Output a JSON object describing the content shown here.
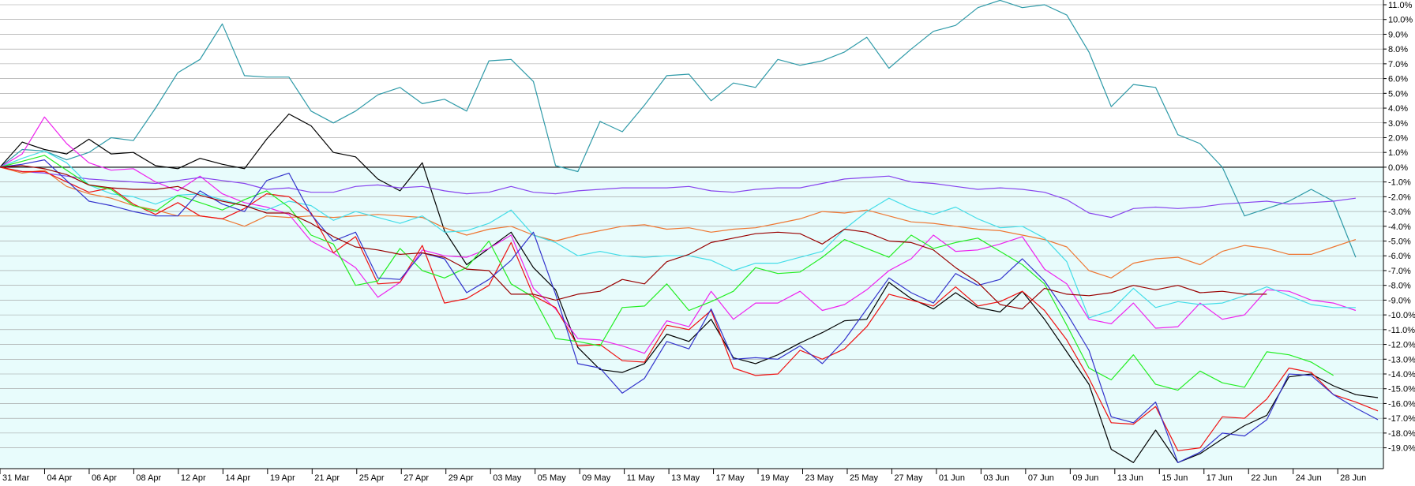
{
  "chart_data": {
    "type": "line",
    "title": "",
    "xlabel": "",
    "ylabel": "",
    "y_axis_side": "right",
    "y_unit": "%",
    "ylim": [
      -20,
      11.5
    ],
    "grid": true,
    "legend": "none",
    "colors": {
      "above_zero_bg": "#ffffff",
      "below_zero_bg": "#e8fcfc",
      "grid": "#9a9a9a",
      "zero_line": "#000000"
    },
    "y_ticks": [
      "11.0%",
      "10.0%",
      "9.0%",
      "8.0%",
      "7.0%",
      "6.0%",
      "5.0%",
      "4.0%",
      "3.0%",
      "2.0%",
      "1.0%",
      "0.0%",
      "-1.0%",
      "-2.0%",
      "-3.0%",
      "-4.0%",
      "-5.0%",
      "-6.0%",
      "-7.0%",
      "-8.0%",
      "-9.0%",
      "-10.0%",
      "-11.0%",
      "-12.0%",
      "-13.0%",
      "-14.0%",
      "-15.0%",
      "-16.0%",
      "-17.0%",
      "-18.0%",
      "-19.0%"
    ],
    "x_ticks": [
      "31 Mar",
      "04 Apr",
      "06 Apr",
      "08 Apr",
      "12 Apr",
      "14 Apr",
      "19 Apr",
      "21 Apr",
      "25 Apr",
      "27 Apr",
      "29 Apr",
      "03 May",
      "05 May",
      "09 May",
      "11 May",
      "13 May",
      "17 May",
      "19 May",
      "23 May",
      "25 May",
      "27 May",
      "01 Jun",
      "03 Jun",
      "07 Jun",
      "09 Jun",
      "13 Jun",
      "15 Jun",
      "17 Jun",
      "22 Jun",
      "24 Jun",
      "28 Jun"
    ],
    "x_points": 63,
    "series": [
      {
        "color": "#2e9aa8",
        "values": [
          0,
          1.2,
          1.1,
          0.5,
          1.0,
          2.0,
          1.8,
          4.0,
          6.4,
          7.3,
          9.7,
          6.2,
          6.1,
          6.1,
          3.8,
          3.0,
          3.8,
          4.9,
          5.4,
          4.3,
          4.6,
          3.8,
          7.2,
          7.3,
          5.8,
          0.1,
          -0.3,
          3.1,
          2.4,
          4.2,
          6.2,
          6.3,
          4.5,
          5.7,
          5.4,
          7.3,
          6.9,
          7.2,
          7.8,
          8.8,
          6.7,
          8.0,
          9.2,
          9.6,
          10.8,
          11.3,
          10.8,
          11.0,
          10.3,
          7.8,
          4.1,
          5.6,
          5.4,
          2.2,
          1.6,
          0.0,
          -3.3,
          -2.8,
          -2.3,
          -1.5,
          -2.3,
          -6.1
        ]
      },
      {
        "color": "#000000",
        "values": [
          0,
          1.7,
          1.2,
          0.9,
          1.9,
          0.9,
          1.0,
          0.1,
          -0.1,
          0.6,
          0.2,
          -0.1,
          1.9,
          3.6,
          2.8,
          1.0,
          0.7,
          -0.8,
          -1.6,
          0.3,
          -4.3,
          -6.6,
          -5.5,
          -4.4,
          -6.8,
          -8.3,
          -12.2,
          -13.7,
          -13.9,
          -13.3,
          -11.3,
          -11.8,
          -10.3,
          -12.9,
          -13.3,
          -12.7,
          -11.9,
          -11.2,
          -10.4,
          -10.3,
          -7.8,
          -8.9,
          -9.6,
          -8.5,
          -9.5,
          -9.8,
          -8.4,
          -10.3,
          -12.5,
          -14.7,
          -19.1,
          -20.0,
          -17.8,
          -20.0,
          -19.4,
          -18.4,
          -17.5,
          -16.8,
          -14.2,
          -14.0,
          -14.8,
          -15.4,
          -15.6
        ]
      },
      {
        "color": "#ee22ee",
        "values": [
          0,
          0.9,
          3.4,
          1.6,
          0.3,
          -0.2,
          -0.1,
          -1.0,
          -1.6,
          -0.6,
          -1.8,
          -2.4,
          -2.7,
          -3.2,
          -5.0,
          -5.8,
          -6.8,
          -8.8,
          -7.8,
          -5.6,
          -6.0,
          -6.1,
          -5.5,
          -4.6,
          -8.2,
          -9.6,
          -11.6,
          -11.7,
          -12.1,
          -12.6,
          -10.4,
          -10.8,
          -8.4,
          -10.3,
          -9.2,
          -9.2,
          -8.4,
          -9.7,
          -9.3,
          -8.3,
          -7.0,
          -6.2,
          -4.6,
          -5.7,
          -5.6,
          -5.2,
          -4.7,
          -6.9,
          -7.9,
          -10.3,
          -10.6,
          -9.2,
          -10.9,
          -10.8,
          -9.2,
          -10.3,
          -10.0,
          -8.3,
          -8.4,
          -9.0,
          -9.2,
          -9.7
        ]
      },
      {
        "color": "#8844ee",
        "values": [
          0,
          -0.3,
          -0.4,
          -0.6,
          -0.8,
          -0.9,
          -1.0,
          -1.1,
          -0.9,
          -0.7,
          -0.9,
          -1.1,
          -1.5,
          -1.4,
          -1.7,
          -1.7,
          -1.3,
          -1.2,
          -1.4,
          -1.3,
          -1.6,
          -1.8,
          -1.7,
          -1.3,
          -1.7,
          -1.8,
          -1.6,
          -1.5,
          -1.4,
          -1.4,
          -1.4,
          -1.3,
          -1.6,
          -1.7,
          -1.5,
          -1.4,
          -1.4,
          -1.1,
          -0.8,
          -0.7,
          -0.6,
          -1.0,
          -1.1,
          -1.3,
          -1.5,
          -1.4,
          -1.5,
          -1.7,
          -2.2,
          -3.1,
          -3.4,
          -2.8,
          -2.7,
          -2.8,
          -2.7,
          -2.5,
          -2.4,
          -2.3,
          -2.5,
          -2.4,
          -2.3,
          -2.1
        ]
      },
      {
        "color": "#ee7733",
        "values": [
          0,
          -0.4,
          -0.2,
          -1.3,
          -1.8,
          -2.1,
          -2.6,
          -2.9,
          -3.3,
          -3.3,
          -3.5,
          -4.0,
          -3.3,
          -3.4,
          -3.3,
          -3.4,
          -3.3,
          -3.2,
          -3.3,
          -3.4,
          -4.1,
          -4.6,
          -4.2,
          -4.0,
          -4.6,
          -5.0,
          -4.6,
          -4.3,
          -4.0,
          -3.9,
          -4.2,
          -4.1,
          -4.4,
          -4.2,
          -4.1,
          -3.8,
          -3.5,
          -3.0,
          -3.1,
          -2.9,
          -3.3,
          -3.7,
          -3.8,
          -4.0,
          -4.2,
          -4.3,
          -4.6,
          -4.9,
          -5.4,
          -7.0,
          -7.5,
          -6.5,
          -6.2,
          -6.1,
          -6.6,
          -5.7,
          -5.3,
          -5.5,
          -5.9,
          -5.9,
          -5.4,
          -4.9
        ]
      },
      {
        "color": "#44dde8",
        "values": [
          0,
          0.6,
          1.1,
          0.3,
          -1.2,
          -1.8,
          -2.0,
          -2.5,
          -1.9,
          -1.8,
          -2.2,
          -2.6,
          -2.9,
          -2.3,
          -2.6,
          -3.6,
          -3.0,
          -3.4,
          -3.8,
          -3.3,
          -4.4,
          -4.3,
          -3.8,
          -2.9,
          -4.6,
          -5.1,
          -6.0,
          -5.7,
          -6.0,
          -6.1,
          -6.0,
          -6.0,
          -6.3,
          -7.0,
          -6.5,
          -6.5,
          -6.1,
          -5.7,
          -4.2,
          -3.0,
          -2.1,
          -2.8,
          -3.2,
          -2.7,
          -3.5,
          -4.1,
          -4.0,
          -4.8,
          -6.4,
          -10.2,
          -9.7,
          -8.2,
          -9.5,
          -9.1,
          -9.3,
          -9.2,
          -8.7,
          -8.1,
          -8.7,
          -9.3,
          -9.5,
          -9.5
        ]
      },
      {
        "color": "#ee1111",
        "values": [
          0,
          -0.3,
          -0.3,
          -1.0,
          -1.7,
          -1.4,
          -2.5,
          -3.2,
          -2.4,
          -3.3,
          -3.5,
          -2.8,
          -1.8,
          -2.0,
          -3.1,
          -5.8,
          -4.7,
          -7.9,
          -7.8,
          -5.3,
          -9.2,
          -8.9,
          -8.0,
          -5.1,
          -8.7,
          -9.5,
          -12.1,
          -12.0,
          -13.1,
          -13.2,
          -10.7,
          -11.0,
          -9.7,
          -13.6,
          -14.1,
          -14.0,
          -12.4,
          -13.0,
          -12.3,
          -10.8,
          -8.6,
          -9.0,
          -9.4,
          -8.1,
          -9.4,
          -9.1,
          -8.4,
          -9.7,
          -11.7,
          -14.3,
          -17.3,
          -17.4,
          -16.2,
          -19.2,
          -19.0,
          -16.9,
          -17.0,
          -15.7,
          -13.6,
          -13.9,
          -15.4,
          -15.9,
          -16.5
        ]
      },
      {
        "color": "#22ee22",
        "values": [
          0,
          0.4,
          0.8,
          -0.2,
          -1.2,
          -1.5,
          -2.6,
          -3.0,
          -1.9,
          -2.4,
          -2.9,
          -2.2,
          -1.6,
          -2.7,
          -4.6,
          -5.2,
          -8.0,
          -7.7,
          -5.5,
          -7.0,
          -7.5,
          -6.8,
          -5.0,
          -7.9,
          -8.8,
          -11.6,
          -11.8,
          -12.1,
          -9.5,
          -9.4,
          -7.9,
          -9.7,
          -9.1,
          -8.4,
          -6.8,
          -7.2,
          -7.1,
          -6.1,
          -4.9,
          -5.5,
          -6.1,
          -4.6,
          -5.5,
          -5.1,
          -4.8,
          -5.7,
          -6.6,
          -7.9,
          -10.7,
          -13.6,
          -14.4,
          -12.7,
          -14.7,
          -15.1,
          -13.8,
          -14.6,
          -14.9,
          -12.5,
          -12.7,
          -13.2,
          -14.1
        ]
      },
      {
        "color": "#3333cc",
        "values": [
          0,
          0.2,
          0.5,
          -0.9,
          -2.3,
          -2.6,
          -3.0,
          -3.3,
          -3.3,
          -1.6,
          -2.5,
          -3.0,
          -0.9,
          -0.4,
          -3.2,
          -5.0,
          -4.4,
          -7.5,
          -7.6,
          -5.8,
          -6.2,
          -8.5,
          -7.6,
          -6.3,
          -4.4,
          -8.6,
          -13.3,
          -13.6,
          -15.3,
          -14.3,
          -11.8,
          -12.3,
          -9.6,
          -13.0,
          -12.9,
          -13.0,
          -12.1,
          -13.3,
          -11.7,
          -9.6,
          -7.5,
          -8.5,
          -9.2,
          -7.2,
          -8.0,
          -7.6,
          -6.2,
          -7.7,
          -9.9,
          -12.4,
          -16.9,
          -17.3,
          -15.9,
          -20.0,
          -19.3,
          -18.0,
          -18.2,
          -17.1,
          -14.0,
          -14.1,
          -15.4,
          -16.3,
          -17.1
        ]
      },
      {
        "color": "#990000",
        "values": [
          0,
          0.1,
          -0.1,
          -0.5,
          -1.2,
          -1.4,
          -1.5,
          -1.5,
          -1.3,
          -1.9,
          -2.3,
          -2.6,
          -3.1,
          -3.1,
          -3.8,
          -4.7,
          -5.4,
          -5.6,
          -5.9,
          -5.8,
          -6.1,
          -6.9,
          -7.0,
          -8.6,
          -8.6,
          -9.0,
          -8.6,
          -8.4,
          -7.6,
          -7.9,
          -6.4,
          -5.9,
          -5.1,
          -4.8,
          -4.5,
          -4.4,
          -4.5,
          -5.2,
          -4.2,
          -4.4,
          -5.0,
          -5.1,
          -5.6,
          -6.8,
          -7.8,
          -9.3,
          -9.6,
          -8.2,
          -8.6,
          -8.7,
          -8.5,
          -8.0,
          -8.3,
          -8.0,
          -8.5,
          -8.4,
          -8.6,
          -8.6
        ]
      }
    ]
  }
}
